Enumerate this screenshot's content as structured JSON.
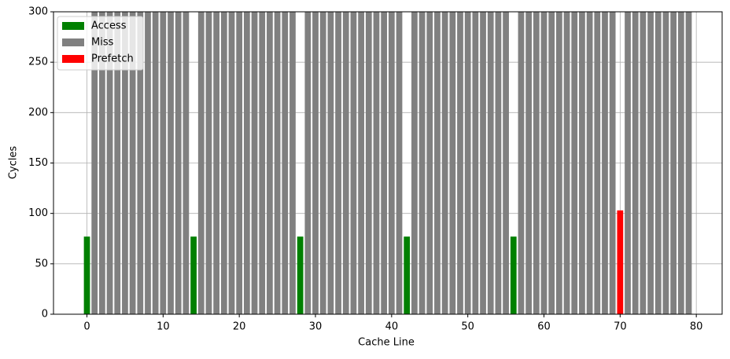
{
  "chart_data": {
    "type": "bar",
    "x_label": "Cache Line",
    "y_label": "Cycles",
    "series": [
      {
        "name": "Access",
        "color": "#008000",
        "x": [
          0,
          14,
          28,
          42,
          56
        ],
        "values": [
          77,
          77,
          77,
          77,
          77
        ]
      },
      {
        "name": "Miss",
        "color": "#808080",
        "x": [
          1,
          2,
          3,
          4,
          5,
          6,
          7,
          8,
          9,
          10,
          11,
          12,
          13,
          15,
          16,
          17,
          18,
          19,
          20,
          21,
          22,
          23,
          24,
          25,
          26,
          27,
          29,
          30,
          31,
          32,
          33,
          34,
          35,
          36,
          37,
          38,
          39,
          40,
          41,
          43,
          44,
          45,
          46,
          47,
          48,
          49,
          50,
          51,
          52,
          53,
          54,
          55,
          57,
          58,
          59,
          60,
          61,
          62,
          63,
          64,
          65,
          66,
          67,
          68,
          69,
          71,
          72,
          73,
          74,
          75,
          76,
          77,
          78,
          79
        ],
        "values": [
          300,
          300,
          300,
          300,
          300,
          300,
          300,
          300,
          300,
          300,
          300,
          300,
          300,
          300,
          300,
          300,
          300,
          300,
          300,
          300,
          300,
          300,
          300,
          300,
          300,
          300,
          300,
          300,
          300,
          300,
          300,
          300,
          300,
          300,
          300,
          300,
          300,
          300,
          300,
          300,
          300,
          300,
          300,
          300,
          300,
          300,
          300,
          300,
          300,
          300,
          300,
          300,
          300,
          300,
          300,
          300,
          300,
          300,
          300,
          300,
          300,
          300,
          300,
          300,
          300,
          300,
          300,
          300,
          300,
          300,
          300,
          300,
          300,
          300
        ]
      },
      {
        "name": "Prefetch",
        "color": "#ff0000",
        "x": [
          70
        ],
        "values": [
          103
        ]
      }
    ],
    "bar_width": 0.8,
    "xlim": [
      -4.39,
      83.39
    ],
    "xticks": [
      0,
      10,
      20,
      30,
      40,
      50,
      60,
      70,
      80
    ],
    "ylim": [
      0,
      300
    ],
    "yticks": [
      0,
      50,
      100,
      150,
      200,
      250,
      300
    ],
    "grid": true,
    "legend": "upper-left"
  }
}
